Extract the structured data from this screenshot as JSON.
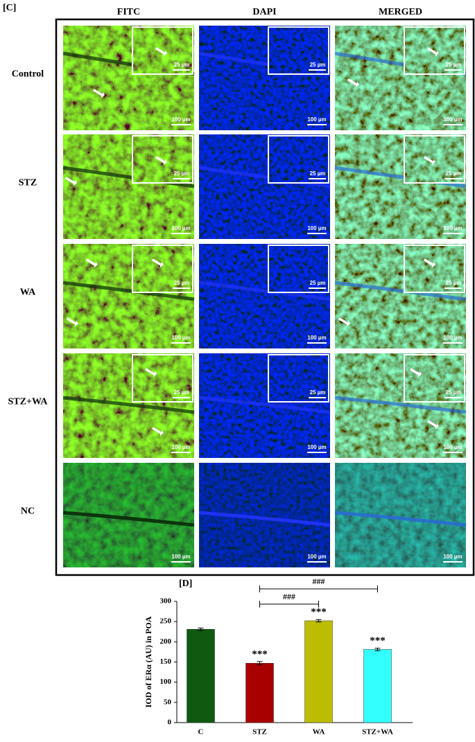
{
  "panel_c": {
    "label": "[C]",
    "columns": [
      "FITC",
      "DAPI",
      "MERGED"
    ],
    "rows": [
      "Control",
      "STZ",
      "WA",
      "STZ+WA",
      "NC"
    ],
    "inset_scale": "25 µm",
    "scale": "100 µm"
  },
  "chart_data": {
    "type": "bar",
    "label": "[D]",
    "y_label": "IOD of ERα (AU) in POA",
    "categories": [
      "C",
      "STZ",
      "WA",
      "STZ+WA"
    ],
    "series": [
      {
        "name": "IOD",
        "colors": [
          "#0e5a10",
          "#a80000",
          "#bdbd00",
          "#33ffff"
        ],
        "values": [
          231,
          147,
          252,
          181
        ],
        "errors": [
          3,
          4,
          3,
          3
        ],
        "value_labels": [
          null,
          "***",
          "***",
          "***"
        ]
      }
    ],
    "comparisons": [
      {
        "label": "###",
        "from": "STZ",
        "to": "STZ+WA"
      },
      {
        "label": "###",
        "from": "STZ",
        "to": "WA"
      }
    ],
    "ylim": [
      0,
      300
    ],
    "yticks": [
      0,
      50,
      100,
      150,
      200,
      250,
      300
    ]
  }
}
